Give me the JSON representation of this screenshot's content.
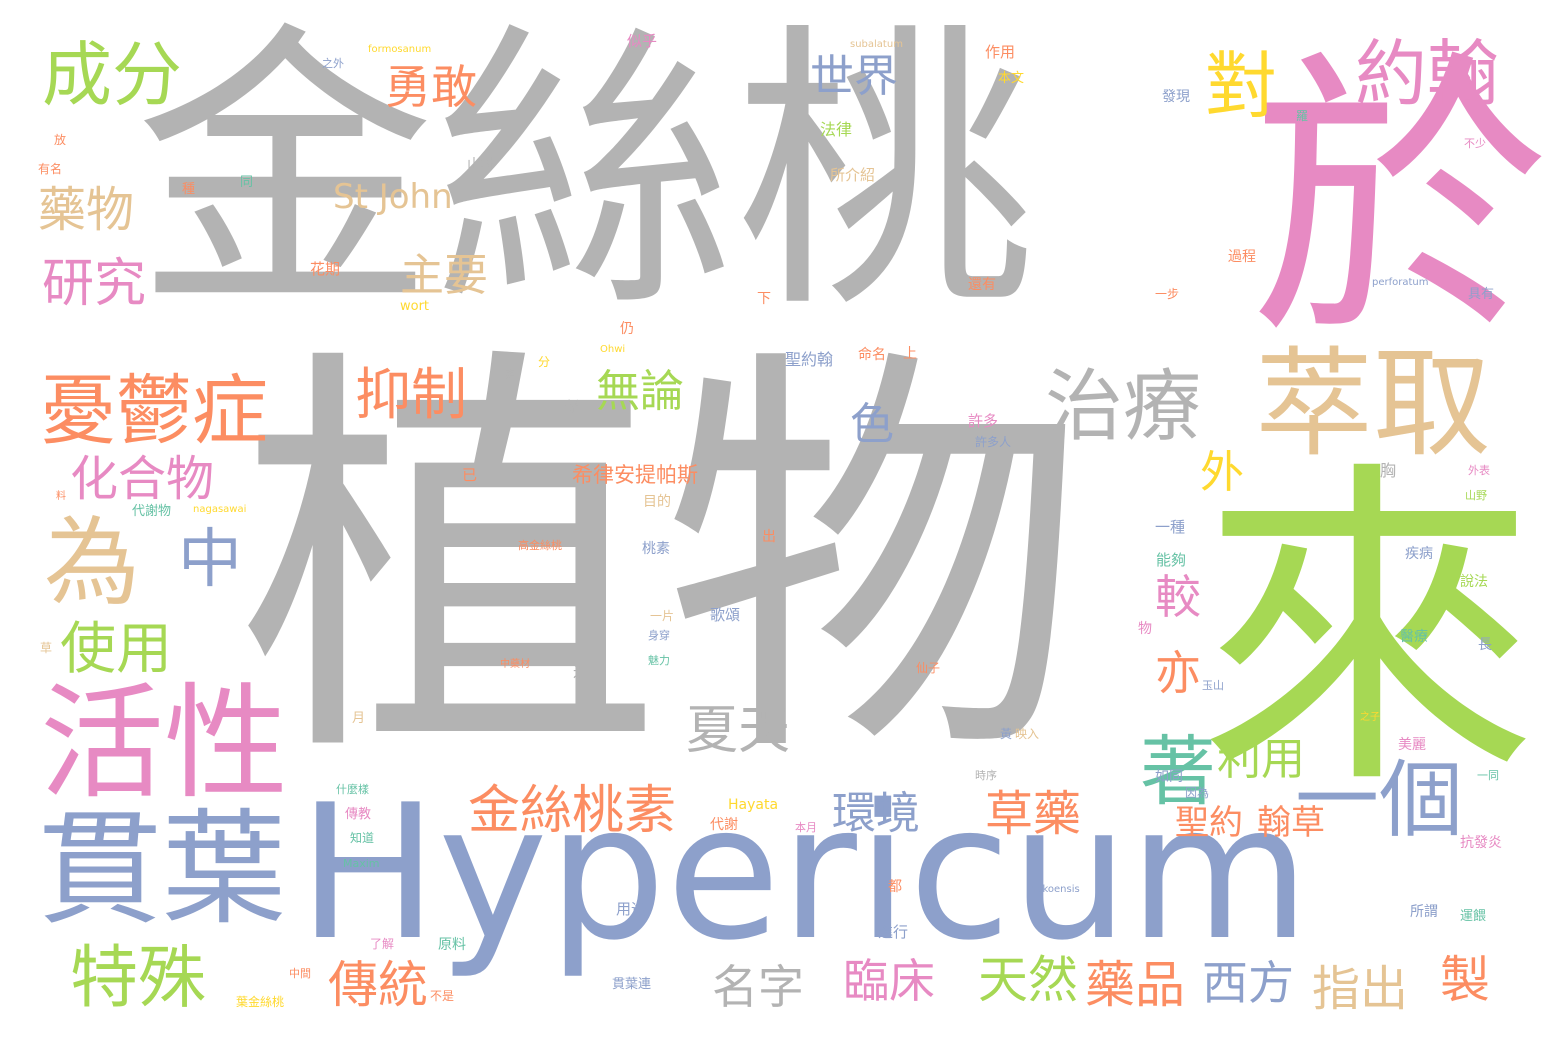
{
  "palette": {
    "gray": "#b3b3b3",
    "green": "#a6d854",
    "pink": "#e78ac3",
    "blue": "#8da0cb",
    "orange": "#fc8d62",
    "tan": "#e5c494",
    "teal": "#66c2a5",
    "yellow": "#ffd92f"
  },
  "words": [
    {
      "text": "金絲桃",
      "color": "gray"
    },
    {
      "text": "植物",
      "color": "gray"
    },
    {
      "text": "於",
      "color": "pink"
    },
    {
      "text": "來",
      "color": "green"
    },
    {
      "text": "Hypericum",
      "color": "blue"
    },
    {
      "text": "貫葉",
      "color": "blue"
    },
    {
      "text": "活性",
      "color": "pink"
    },
    {
      "text": "萃取",
      "color": "tan"
    },
    {
      "text": "約翰",
      "color": "pink"
    },
    {
      "text": "對",
      "color": "yellow"
    },
    {
      "text": "成分",
      "color": "green"
    },
    {
      "text": "憂鬱症",
      "color": "orange"
    },
    {
      "text": "治療",
      "color": "gray"
    },
    {
      "text": "為",
      "color": "tan"
    },
    {
      "text": "中",
      "color": "blue"
    },
    {
      "text": "著",
      "color": "teal"
    },
    {
      "text": "一個",
      "color": "blue"
    },
    {
      "text": "世界",
      "color": "blue"
    },
    {
      "text": "勇敢",
      "color": "orange"
    },
    {
      "text": "藥物",
      "color": "tan"
    },
    {
      "text": "研究",
      "color": "pink"
    },
    {
      "text": "St John",
      "color": "tan"
    },
    {
      "text": "主要",
      "color": "tan"
    },
    {
      "text": "抑制",
      "color": "orange"
    },
    {
      "text": "無論",
      "color": "green"
    },
    {
      "text": "化合物",
      "color": "pink"
    },
    {
      "text": "使用",
      "color": "green"
    },
    {
      "text": "特殊",
      "color": "green"
    },
    {
      "text": "色",
      "color": "blue"
    },
    {
      "text": "外",
      "color": "yellow"
    },
    {
      "text": "較",
      "color": "pink"
    },
    {
      "text": "亦",
      "color": "orange"
    },
    {
      "text": "夏天",
      "color": "gray"
    },
    {
      "text": "金絲桃素",
      "color": "orange"
    },
    {
      "text": "環境",
      "color": "blue"
    },
    {
      "text": "草藥",
      "color": "orange"
    },
    {
      "text": "利用",
      "color": "green"
    },
    {
      "text": "聖約",
      "color": "orange"
    },
    {
      "text": "翰草",
      "color": "orange"
    },
    {
      "text": "傳統",
      "color": "orange"
    },
    {
      "text": "名字",
      "color": "gray"
    },
    {
      "text": "臨床",
      "color": "pink"
    },
    {
      "text": "天然",
      "color": "green"
    },
    {
      "text": "藥品",
      "color": "orange"
    },
    {
      "text": "西方",
      "color": "blue"
    },
    {
      "text": "指出",
      "color": "tan"
    },
    {
      "text": "製",
      "color": "orange"
    },
    {
      "text": "希律安提",
      "color": "orange"
    },
    {
      "text": "帕斯",
      "color": "orange"
    },
    {
      "text": "法律",
      "color": "green"
    },
    {
      "text": "所介紹",
      "color": "tan"
    },
    {
      "text": "花期",
      "color": "orange"
    },
    {
      "text": "wort",
      "color": "yellow"
    },
    {
      "text": "聖約翰",
      "color": "blue"
    },
    {
      "text": "命名",
      "color": "orange"
    },
    {
      "text": "許多",
      "color": "pink"
    },
    {
      "text": "許多人",
      "color": "blue"
    },
    {
      "text": "目的",
      "color": "tan"
    },
    {
      "text": "代謝物",
      "color": "teal"
    },
    {
      "text": "nagasawai",
      "color": "yellow"
    },
    {
      "text": "桃素",
      "color": "blue"
    },
    {
      "text": "能夠",
      "color": "teal"
    },
    {
      "text": "疾病",
      "color": "blue"
    },
    {
      "text": "說法",
      "color": "green"
    },
    {
      "text": "醫療",
      "color": "teal"
    },
    {
      "text": "一種",
      "color": "blue"
    },
    {
      "text": "出",
      "color": "orange"
    },
    {
      "text": "一片",
      "color": "tan"
    },
    {
      "text": "歌頌",
      "color": "blue"
    },
    {
      "text": "近",
      "color": "gray"
    },
    {
      "text": "月",
      "color": "tan"
    },
    {
      "text": "什麼樣",
      "color": "teal"
    },
    {
      "text": "如同",
      "color": "blue"
    },
    {
      "text": "美麗",
      "color": "pink"
    },
    {
      "text": "因為",
      "color": "blue"
    },
    {
      "text": "代謝",
      "color": "orange"
    },
    {
      "text": "本月",
      "color": "pink"
    },
    {
      "text": "Hayata",
      "color": "yellow"
    },
    {
      "text": "Maxim",
      "color": "teal"
    },
    {
      "text": "傳教",
      "color": "pink"
    },
    {
      "text": "知道",
      "color": "teal"
    },
    {
      "text": "用途",
      "color": "blue"
    },
    {
      "text": "進行",
      "color": "blue"
    },
    {
      "text": "都",
      "color": "orange"
    },
    {
      "text": "原料",
      "color": "teal"
    },
    {
      "text": "了解",
      "color": "pink"
    },
    {
      "text": "不是",
      "color": "orange"
    },
    {
      "text": "中間",
      "color": "orange"
    },
    {
      "text": "葉金絲桃",
      "color": "yellow"
    },
    {
      "text": "貫葉連",
      "color": "blue"
    },
    {
      "text": "抗發炎",
      "color": "pink"
    },
    {
      "text": "所謂",
      "color": "blue"
    },
    {
      "text": "運餵",
      "color": "teal"
    },
    {
      "text": "nokoensis",
      "color": "blue"
    },
    {
      "text": "formosanum",
      "color": "yellow"
    },
    {
      "text": "subalatum",
      "color": "tan"
    },
    {
      "text": "perforatum",
      "color": "blue"
    },
    {
      "text": "似乎",
      "color": "pink"
    },
    {
      "text": "作用",
      "color": "orange"
    },
    {
      "text": "本文",
      "color": "yellow"
    },
    {
      "text": "發現",
      "color": "blue"
    },
    {
      "text": "之外",
      "color": "blue"
    },
    {
      "text": "放",
      "color": "orange"
    },
    {
      "text": "有名",
      "color": "orange"
    },
    {
      "text": "山林",
      "color": "gray"
    },
    {
      "text": "種",
      "color": "orange"
    },
    {
      "text": "同",
      "color": "teal"
    },
    {
      "text": "不少",
      "color": "pink"
    },
    {
      "text": "具有",
      "color": "blue"
    },
    {
      "text": "一步",
      "color": "orange"
    },
    {
      "text": "過程",
      "color": "orange"
    },
    {
      "text": "還有",
      "color": "orange"
    },
    {
      "text": "下",
      "color": "orange"
    },
    {
      "text": "上",
      "color": "orange"
    },
    {
      "text": "仍",
      "color": "orange"
    },
    {
      "text": "分",
      "color": "yellow"
    },
    {
      "text": "更",
      "color": "gray"
    },
    {
      "text": "係",
      "color": "gray"
    },
    {
      "text": "已",
      "color": "orange"
    },
    {
      "text": "外表",
      "color": "pink"
    },
    {
      "text": "山野",
      "color": "green"
    },
    {
      "text": "長",
      "color": "blue"
    },
    {
      "text": "一同",
      "color": "teal"
    },
    {
      "text": "之子",
      "color": "yellow"
    },
    {
      "text": "時序",
      "color": "gray"
    },
    {
      "text": "映入",
      "color": "tan"
    },
    {
      "text": "高金絲桃",
      "color": "orange"
    },
    {
      "text": "中藥材",
      "color": "orange"
    },
    {
      "text": "魅力",
      "color": "teal"
    },
    {
      "text": "仙子",
      "color": "orange"
    },
    {
      "text": "玉山",
      "color": "blue"
    },
    {
      "text": "物",
      "color": "pink"
    },
    {
      "text": "草",
      "color": "tan"
    },
    {
      "text": "料",
      "color": "orange"
    },
    {
      "text": "身穿",
      "color": "blue"
    },
    {
      "text": "黃",
      "color": "blue"
    },
    {
      "text": "Ohwi",
      "color": "yellow"
    },
    {
      "text": "胸",
      "color": "gray"
    },
    {
      "text": "羅",
      "color": "teal"
    }
  ]
}
